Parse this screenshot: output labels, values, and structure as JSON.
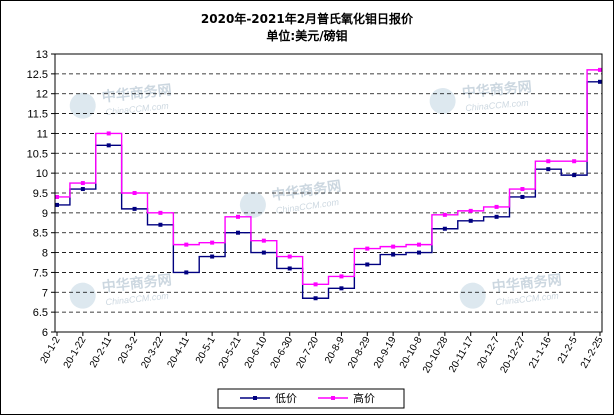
{
  "chart_data": {
    "type": "line",
    "title": "2020年-2021年2月普氏氧化钼日报价",
    "subtitle": "单位:美元/磅钼",
    "xlabel": "",
    "ylabel": "",
    "ylim": [
      6,
      13
    ],
    "y_ticks": [
      "6",
      "6.5",
      "7",
      "7.5",
      "8",
      "8.5",
      "9",
      "9.5",
      "10",
      "10.5",
      "11",
      "11.5",
      "12",
      "12.5",
      "13"
    ],
    "grid": true,
    "legend_position": "bottom",
    "categories": [
      "20-1-2",
      "20-1-22",
      "20-2-11",
      "20-3-2",
      "20-3-22",
      "20-4-11",
      "20-5-1",
      "20-5-21",
      "20-6-10",
      "20-6-30",
      "20-7-20",
      "20-8-9",
      "20-8-29",
      "20-9-19",
      "20-10-8",
      "20-10-28",
      "20-11-17",
      "20-12-7",
      "20-12-27",
      "21-1-16",
      "21-2-5",
      "21-2-25"
    ],
    "series": [
      {
        "name": "低价",
        "color": "#000080",
        "marker": "square",
        "values": [
          9.2,
          9.6,
          10.7,
          9.1,
          8.7,
          7.5,
          7.9,
          8.5,
          8.0,
          7.6,
          6.85,
          7.1,
          7.7,
          7.95,
          8.0,
          8.6,
          8.8,
          8.9,
          9.4,
          10.1,
          9.95,
          12.3
        ]
      },
      {
        "name": "高价",
        "color": "#ff00ff",
        "marker": "square",
        "values": [
          9.4,
          9.75,
          11.0,
          9.5,
          9.0,
          8.2,
          8.25,
          8.9,
          8.3,
          7.9,
          7.2,
          7.4,
          8.1,
          8.15,
          8.2,
          8.95,
          9.05,
          9.15,
          9.6,
          10.3,
          10.3,
          12.6
        ]
      }
    ]
  },
  "legend": {
    "items": [
      "低价",
      "高价"
    ]
  },
  "watermark": {
    "text": "中华商务网",
    "sub": "ChinaCCM.com"
  }
}
